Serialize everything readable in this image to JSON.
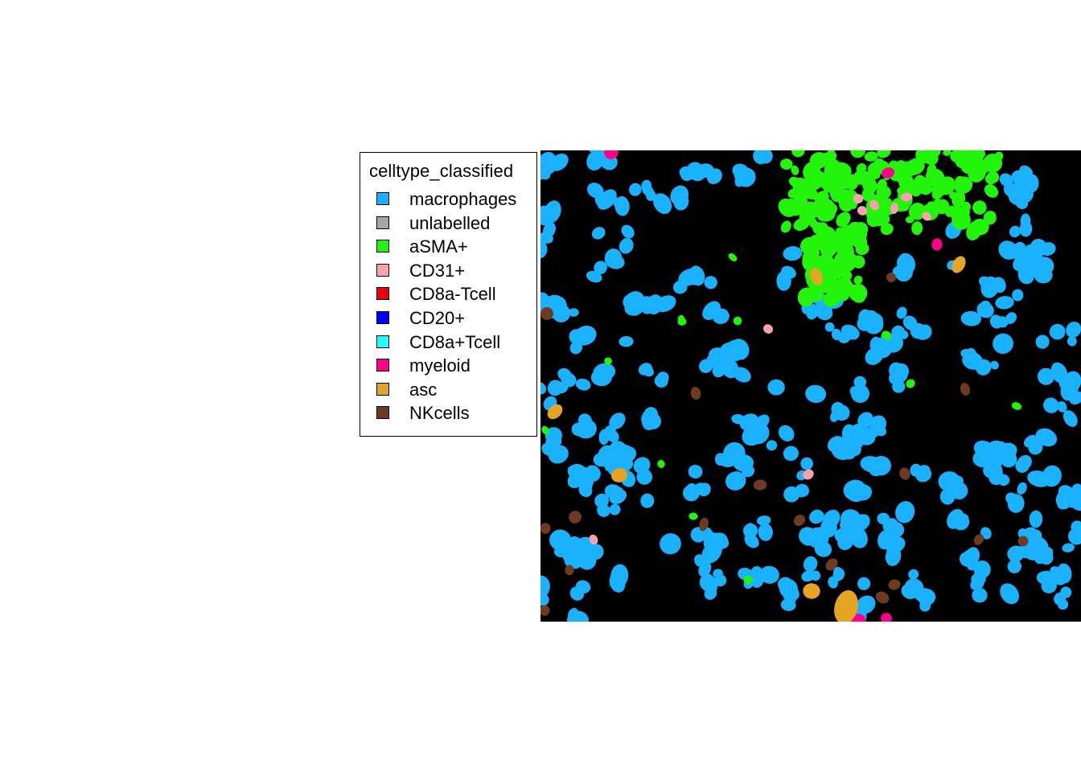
{
  "legend": {
    "title": "celltype_classified",
    "items": [
      {
        "label": "macrophages",
        "color": "#1AB2FF"
      },
      {
        "label": "unlabelled",
        "color": "#A6A6A6"
      },
      {
        "label": "aSMA+",
        "color": "#22F50A"
      },
      {
        "label": "CD31+",
        "color": "#F7A2AC"
      },
      {
        "label": "CD8a-Tcell",
        "color": "#E8000B"
      },
      {
        "label": "CD20+",
        "color": "#0000FF"
      },
      {
        "label": "CD8a+Tcell",
        "color": "#22FFFF"
      },
      {
        "label": "myeloid",
        "color": "#FF0088"
      },
      {
        "label": "asc",
        "color": "#E5A522"
      },
      {
        "label": "NKcells",
        "color": "#6E3A22"
      }
    ]
  },
  "image": {
    "background": "#000000"
  }
}
